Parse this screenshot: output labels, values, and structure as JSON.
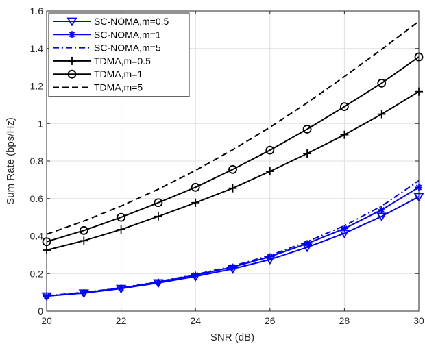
{
  "chart_data": {
    "type": "line",
    "xlabel": "SNR (dB)",
    "ylabel": "Sum Rate (bps/Hz)",
    "xlim": [
      20,
      30
    ],
    "ylim": [
      0,
      1.6
    ],
    "x_ticks": [
      20,
      22,
      24,
      26,
      28,
      30
    ],
    "y_ticks": [
      0,
      0.2,
      0.4,
      0.6,
      0.8,
      1,
      1.2,
      1.4,
      1.6
    ],
    "x_tick_labels": [
      "20",
      "22",
      "24",
      "26",
      "28",
      "30"
    ],
    "y_tick_labels": [
      "0",
      "0.2",
      "0.4",
      "0.6",
      "0.8",
      "1",
      "1.2",
      "1.4",
      "1.6"
    ],
    "grid": true,
    "legend_position": "top-left",
    "x": [
      20,
      21,
      22,
      23,
      24,
      25,
      26,
      27,
      28,
      29,
      30
    ],
    "series": [
      {
        "name": "SC-NOMA,m=0.5",
        "color": "#0000ff",
        "line_style": "solid",
        "marker": "triangle-down",
        "values": [
          0.08,
          0.096,
          0.12,
          0.15,
          0.185,
          0.225,
          0.275,
          0.34,
          0.415,
          0.505,
          0.61
        ]
      },
      {
        "name": "SC-NOMA,m=1",
        "color": "#0000ff",
        "line_style": "solid",
        "marker": "asterisk",
        "values": [
          0.08,
          0.098,
          0.123,
          0.155,
          0.192,
          0.235,
          0.29,
          0.36,
          0.44,
          0.54,
          0.66
        ]
      },
      {
        "name": "SC-NOMA,m=5",
        "color": "#0000ff",
        "line_style": "dashdot",
        "marker": "none",
        "values": [
          0.082,
          0.1,
          0.125,
          0.157,
          0.195,
          0.24,
          0.297,
          0.37,
          0.455,
          0.56,
          0.695
        ]
      },
      {
        "name": "TDMA,m=0.5",
        "color": "#000000",
        "line_style": "solid",
        "marker": "plus",
        "values": [
          0.325,
          0.375,
          0.435,
          0.505,
          0.578,
          0.655,
          0.745,
          0.84,
          0.94,
          1.05,
          1.17
        ]
      },
      {
        "name": "TDMA,m=1",
        "color": "#000000",
        "line_style": "solid",
        "marker": "circle",
        "values": [
          0.37,
          0.43,
          0.5,
          0.578,
          0.66,
          0.755,
          0.858,
          0.97,
          1.09,
          1.215,
          1.355
        ]
      },
      {
        "name": "TDMA,m=5",
        "color": "#000000",
        "line_style": "dashed",
        "marker": "none",
        "values": [
          0.41,
          0.48,
          0.56,
          0.65,
          0.75,
          0.86,
          0.98,
          1.11,
          1.25,
          1.395,
          1.545
        ]
      }
    ]
  }
}
